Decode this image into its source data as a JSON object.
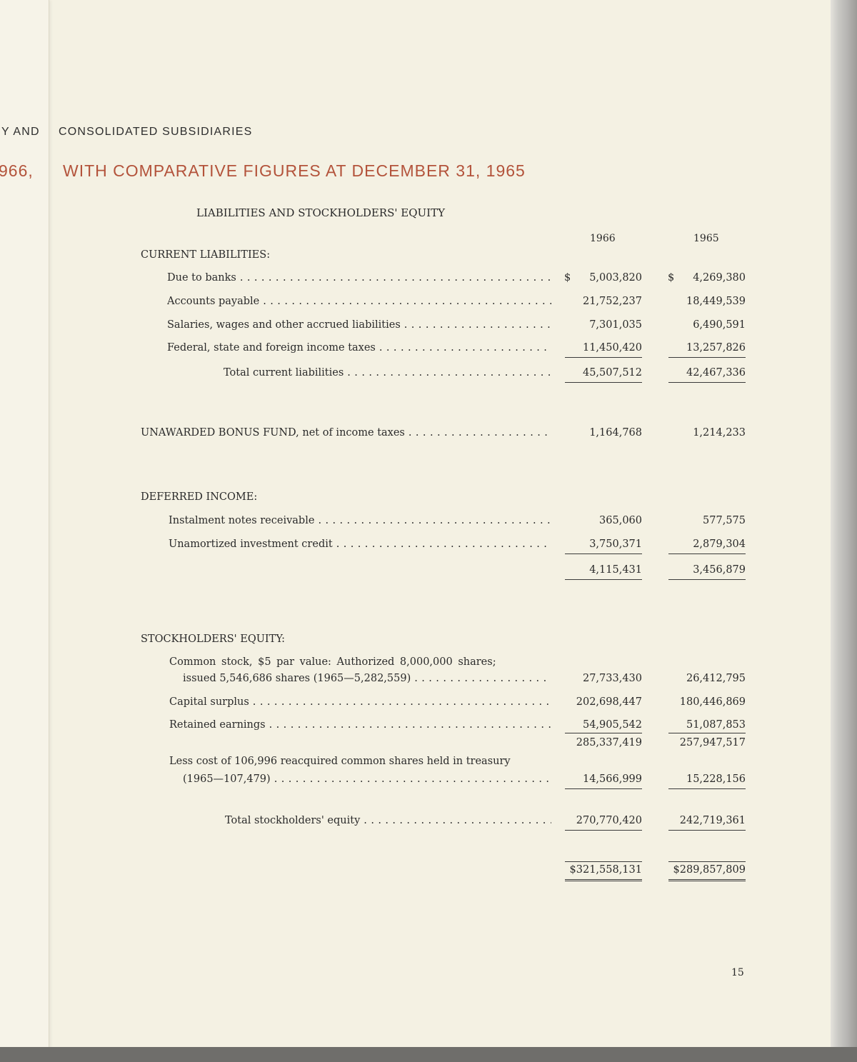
{
  "left_page": {
    "fragment_1": "Y AND",
    "fragment_2": "966,"
  },
  "header": {
    "subtitle": "CONSOLIDATED SUBSIDIARIES",
    "title": "WITH COMPARATIVE FIGURES AT DECEMBER 31, 1965",
    "title_color": "#b3533b"
  },
  "section_title": "LIABILITIES AND STOCKHOLDERS' EQUITY",
  "columns": [
    "1966",
    "1965"
  ],
  "currency_symbol": "$",
  "current_liabilities": {
    "heading": "CURRENT LIABILITIES:",
    "rows": [
      {
        "label": "Due to banks",
        "v1966": "5,003,820",
        "v1965": "4,269,380"
      },
      {
        "label": "Accounts payable",
        "v1966": "21,752,237",
        "v1965": "18,449,539"
      },
      {
        "label": "Salaries, wages and other accrued liabilities",
        "v1966": "7,301,035",
        "v1965": "6,490,591"
      },
      {
        "label": "Federal, state and foreign income taxes",
        "v1966": "11,450,420",
        "v1965": "13,257,826"
      }
    ],
    "total": {
      "label": "Total current liabilities",
      "v1966": "45,507,512",
      "v1965": "42,467,336"
    }
  },
  "unawarded_bonus": {
    "label": "UNAWARDED BONUS FUND, net of income taxes",
    "v1966": "1,164,768",
    "v1965": "1,214,233"
  },
  "deferred_income": {
    "heading": "DEFERRED INCOME:",
    "rows": [
      {
        "label": "Instalment notes receivable",
        "v1966": "365,060",
        "v1965": "577,575"
      },
      {
        "label": "Unamortized investment credit",
        "v1966": "3,750,371",
        "v1965": "2,879,304"
      }
    ],
    "total": {
      "v1966": "4,115,431",
      "v1965": "3,456,879"
    }
  },
  "stockholders_equity": {
    "heading": "STOCKHOLDERS' EQUITY:",
    "common_stock": {
      "line1": "Common stock, $5 par value: Authorized 8,000,000 shares;",
      "line2": "issued 5,546,686 shares (1965—5,282,559)",
      "v1966": "27,733,430",
      "v1965": "26,412,795"
    },
    "capital_surplus": {
      "label": "Capital surplus",
      "v1966": "202,698,447",
      "v1965": "180,446,869"
    },
    "retained_earnings": {
      "label": "Retained earnings",
      "v1966": "54,905,542",
      "v1965": "51,087,853"
    },
    "subtotal": {
      "v1966": "285,337,419",
      "v1965": "257,947,517"
    },
    "treasury": {
      "line1": "Less cost of 106,996 reacquired common shares held in treasury",
      "line2": "(1965—107,479)",
      "v1966": "14,566,999",
      "v1965": "15,228,156"
    },
    "total": {
      "label": "Total stockholders' equity",
      "v1966": "270,770,420",
      "v1965": "242,719,361"
    }
  },
  "grand_total": {
    "v1966": "$321,558,131",
    "v1965": "$289,857,809"
  },
  "page_number": "15"
}
